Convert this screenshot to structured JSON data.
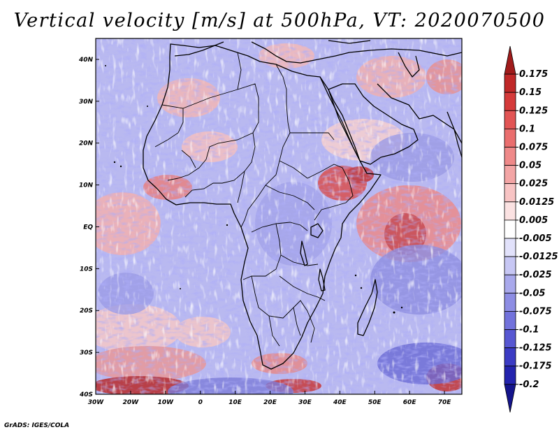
{
  "title": "Vertical velocity [m/s] at 500hPa, VT: 2020070500",
  "credit": "GrADS: IGES/COLA",
  "map": {
    "lon_range": [
      -30,
      75
    ],
    "lat_range": [
      -40,
      45
    ],
    "lon_ticks": [
      {
        "value": -30,
        "label": "30W"
      },
      {
        "value": -20,
        "label": "20W"
      },
      {
        "value": -10,
        "label": "10W"
      },
      {
        "value": 0,
        "label": "0"
      },
      {
        "value": 10,
        "label": "10E"
      },
      {
        "value": 20,
        "label": "20E"
      },
      {
        "value": 30,
        "label": "30E"
      },
      {
        "value": 40,
        "label": "40E"
      },
      {
        "value": 50,
        "label": "50E"
      },
      {
        "value": 60,
        "label": "60E"
      },
      {
        "value": 70,
        "label": "70E"
      }
    ],
    "lat_ticks": [
      {
        "value": 40,
        "label": "40N"
      },
      {
        "value": 30,
        "label": "30N"
      },
      {
        "value": 20,
        "label": "20N"
      },
      {
        "value": 10,
        "label": "10N"
      },
      {
        "value": 0,
        "label": "EQ"
      },
      {
        "value": -10,
        "label": "10S"
      },
      {
        "value": -20,
        "label": "20S"
      },
      {
        "value": -30,
        "label": "30S"
      },
      {
        "value": -40,
        "label": "40S"
      }
    ],
    "field_features": "mostly negative (blue) with positive bands over Ethiopian highlands, Arabian Sea, Gulf of Guinea, south Atlantic and South Africa"
  },
  "colorbar": {
    "levels": [
      "0.175",
      "0.15",
      "0.125",
      "0.1",
      "0.075",
      "0.05",
      "0.025",
      "0.0125",
      "0.005",
      "-0.005",
      "-0.0125",
      "-0.025",
      "-0.05",
      "-0.075",
      "-0.1",
      "-0.125",
      "-0.175",
      "-0.2"
    ],
    "colors": [
      "#a01b1b",
      "#c02828",
      "#d53a3a",
      "#e25454",
      "#ea6e6e",
      "#ef8989",
      "#f3a5a5",
      "#f8c4c4",
      "#fbe2e2",
      "#ffffff",
      "#e2e2fb",
      "#c7c7f4",
      "#a9a9ec",
      "#8d8de4",
      "#7272dc",
      "#5757d2",
      "#3b3bc4",
      "#2323ae",
      "#14148c"
    ]
  }
}
